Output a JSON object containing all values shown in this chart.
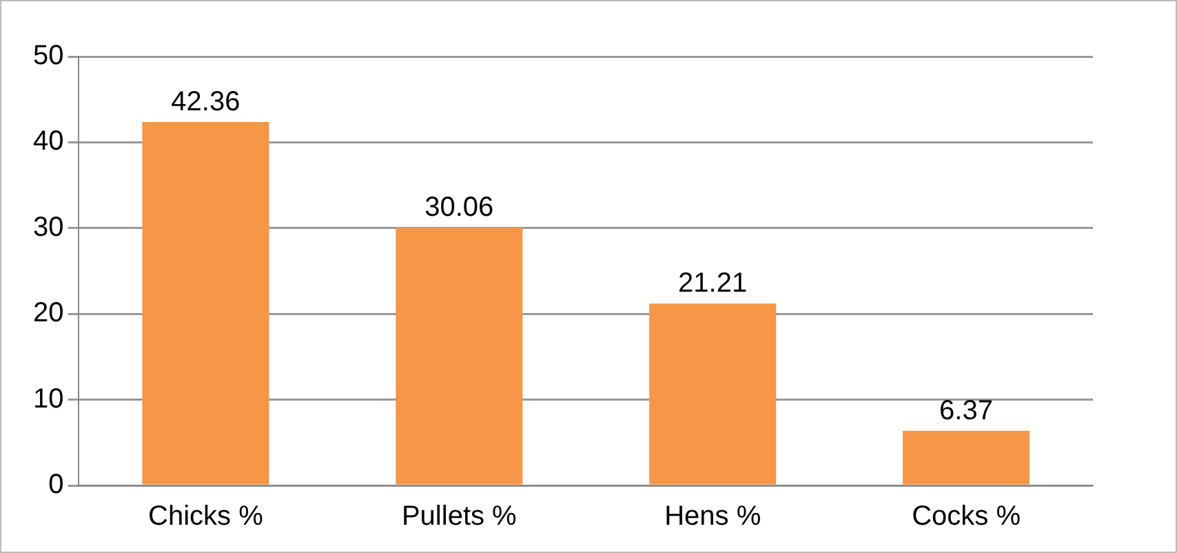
{
  "chart_data": {
    "type": "bar",
    "categories": [
      "Chicks %",
      "Pullets %",
      "Hens %",
      "Cocks %"
    ],
    "values": [
      42.36,
      30.06,
      21.21,
      6.37
    ],
    "color": "#f79646",
    "ylim": [
      0,
      50
    ],
    "yticks": [
      0,
      10,
      20,
      30,
      40,
      50
    ],
    "grid": "y",
    "data_labels": true
  }
}
